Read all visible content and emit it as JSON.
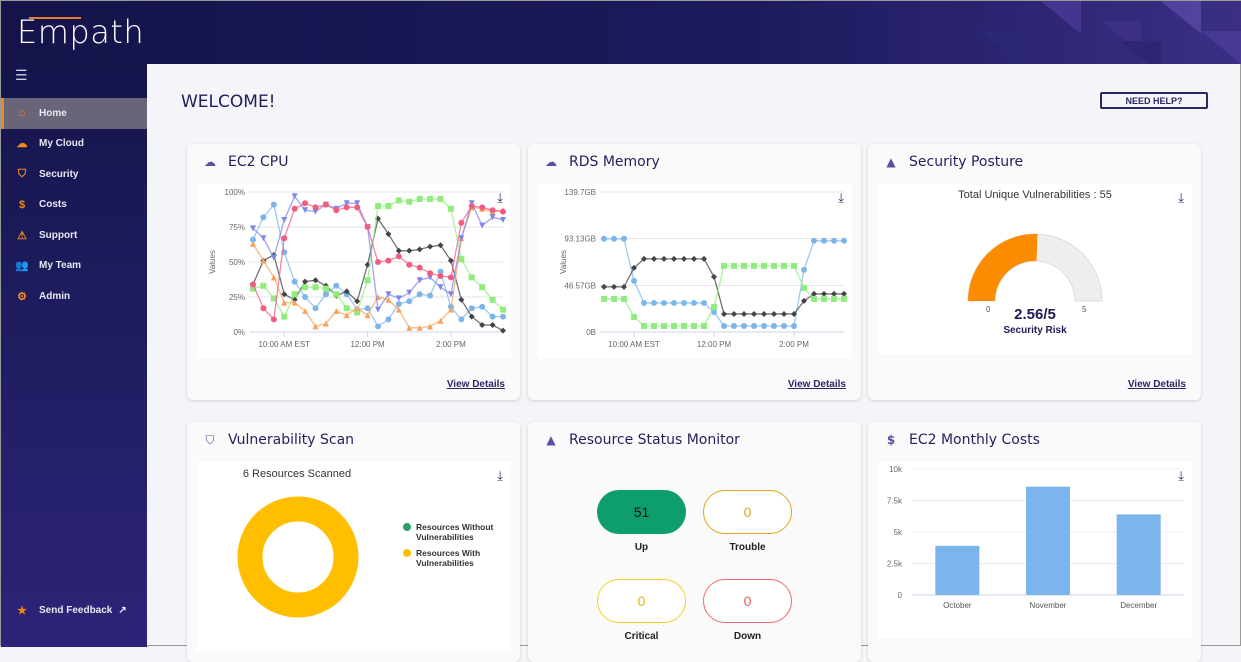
{
  "app": {
    "logo": "Empath"
  },
  "sidebar": {
    "items": [
      {
        "label": "Home",
        "icon": "home-icon",
        "glyph": "⌂"
      },
      {
        "label": "My Cloud",
        "icon": "cloud-icon",
        "glyph": "☁"
      },
      {
        "label": "Security",
        "icon": "shield-icon",
        "glyph": "⛉"
      },
      {
        "label": "Costs",
        "icon": "dollar-icon",
        "glyph": "$"
      },
      {
        "label": "Support",
        "icon": "warning-icon",
        "glyph": "⚠"
      },
      {
        "label": "My Team",
        "icon": "team-icon",
        "glyph": "👥"
      },
      {
        "label": "Admin",
        "icon": "admin-icon",
        "glyph": "⚙"
      }
    ],
    "feedback": "Send Feedback"
  },
  "main": {
    "welcome": "WELCOME!",
    "help": "NEED HELP?",
    "view_details": "View Details"
  },
  "cards": {
    "ec2cpu": {
      "title": "EC2 CPU"
    },
    "rds": {
      "title": "RDS Memory"
    },
    "security": {
      "title": "Security Posture",
      "subtitle": "Total Unique Vulnerabilities : 55",
      "score": "2.56/5",
      "score_label": "Security Risk",
      "min": "0",
      "max": "5",
      "value": 2.56,
      "max_value": 5,
      "color": "#fb8c00"
    },
    "vuln": {
      "title": "Vulnerability Scan",
      "subtitle": "6 Resources Scanned",
      "legend": [
        {
          "label1": "Resources Without",
          "label2": "Vulnerabilities",
          "color": "#2e9e6b",
          "value": 0
        },
        {
          "label1": "Resources With",
          "label2": "Vulnerabilities",
          "color": "#ffbf00",
          "value": 6
        }
      ]
    },
    "status": {
      "title": "Resource Status Monitor",
      "items": [
        {
          "label": "Up",
          "value": "51"
        },
        {
          "label": "Trouble",
          "value": "0"
        },
        {
          "label": "Critical",
          "value": "0"
        },
        {
          "label": "Down",
          "value": "0"
        }
      ]
    },
    "costs": {
      "title": "EC2 Monthly Costs"
    }
  },
  "chart_data": [
    {
      "type": "line",
      "id": "cpu",
      "ylabel": "Values",
      "ylim": [
        0,
        100
      ],
      "yticks": [
        "0%",
        "25%",
        "50%",
        "75%",
        "100%"
      ],
      "xticks": [
        {
          "i": 3,
          "label": "10:00 AM EST"
        },
        {
          "i": 11,
          "label": "12:00 PM"
        },
        {
          "i": 19,
          "label": "2:00 PM"
        }
      ],
      "series": [
        {
          "name": "s1",
          "color": "#7cb5ec",
          "marker": "circle",
          "values": [
            66,
            82,
            91,
            57,
            36,
            25,
            17,
            27,
            33,
            27,
            16,
            17,
            4,
            9,
            20,
            22,
            27,
            26,
            43,
            18,
            9,
            17,
            18,
            11,
            11
          ]
        },
        {
          "name": "s2",
          "color": "#434348",
          "marker": "diamond",
          "values": [
            34,
            51,
            55,
            27,
            23,
            36,
            37,
            33,
            26,
            29,
            22,
            48,
            81,
            70,
            58,
            58,
            59,
            61,
            62,
            51,
            23,
            11,
            5,
            5,
            1
          ]
        },
        {
          "name": "s3",
          "color": "#90ed7d",
          "marker": "square",
          "values": [
            31,
            33,
            24,
            11,
            27,
            32,
            32,
            31,
            27,
            17,
            14,
            37,
            90,
            90,
            94,
            93,
            95,
            95,
            95,
            88,
            52,
            39,
            32,
            23,
            16
          ]
        },
        {
          "name": "s4",
          "color": "#f7a35c",
          "marker": "triangle",
          "values": [
            63,
            51,
            39,
            21,
            21,
            15,
            4,
            6,
            15,
            12,
            17,
            12,
            25,
            23,
            16,
            3,
            3,
            4,
            8,
            16,
            67,
            89,
            88,
            86,
            87
          ]
        },
        {
          "name": "s5",
          "color": "#8085e9",
          "marker": "triangle-down",
          "values": [
            74,
            67,
            53,
            80,
            97,
            87,
            86,
            91,
            88,
            92,
            92,
            75,
            16,
            27,
            24,
            28,
            37,
            39,
            32,
            27,
            67,
            92,
            76,
            82,
            80
          ]
        },
        {
          "name": "s6",
          "color": "#f15c80",
          "marker": "circle",
          "values": [
            34,
            17,
            9,
            67,
            88,
            92,
            89,
            91,
            87,
            89,
            89,
            75,
            50,
            51,
            54,
            48,
            46,
            42,
            40,
            39,
            78,
            90,
            89,
            87,
            86
          ]
        }
      ]
    },
    {
      "type": "line",
      "id": "rds",
      "ylabel": "Values",
      "ylim": [
        0,
        139.7
      ],
      "yticks": [
        "0B",
        "46.57GB",
        "93.13GB",
        "139.7GB"
      ],
      "xticks": [
        {
          "i": 3,
          "label": "10:00 AM EST"
        },
        {
          "i": 11,
          "label": "12:00 PM"
        },
        {
          "i": 19,
          "label": "2:00 PM"
        }
      ],
      "series": [
        {
          "name": "s1",
          "color": "#7cb5ec",
          "marker": "circle",
          "values": [
            93,
            93,
            93,
            51,
            29,
            29,
            29,
            29,
            29,
            29,
            29,
            20,
            6,
            6,
            6,
            6,
            6,
            6,
            6,
            6,
            62,
            91,
            91,
            91,
            91
          ]
        },
        {
          "name": "s2",
          "color": "#434348",
          "marker": "diamond",
          "values": [
            45,
            45,
            45,
            64,
            73,
            73,
            73,
            73,
            73,
            73,
            73,
            55,
            18,
            18,
            18,
            18,
            18,
            18,
            18,
            18,
            31,
            38,
            38,
            38,
            38
          ]
        },
        {
          "name": "s3",
          "color": "#90ed7d",
          "marker": "square",
          "values": [
            33,
            33,
            33,
            15,
            6,
            6,
            6,
            6,
            6,
            6,
            6,
            25,
            66,
            66,
            66,
            66,
            66,
            66,
            66,
            66,
            44,
            33,
            33,
            33,
            33
          ]
        }
      ]
    },
    {
      "type": "bar",
      "id": "costs",
      "categories": [
        "October",
        "November",
        "December"
      ],
      "values": [
        3900,
        8600,
        6400
      ],
      "ylim": [
        0,
        10000
      ],
      "yticks": [
        "0",
        "2.5k",
        "5k",
        "7.5k",
        "10k"
      ],
      "color": "#7cb5ec"
    }
  ]
}
